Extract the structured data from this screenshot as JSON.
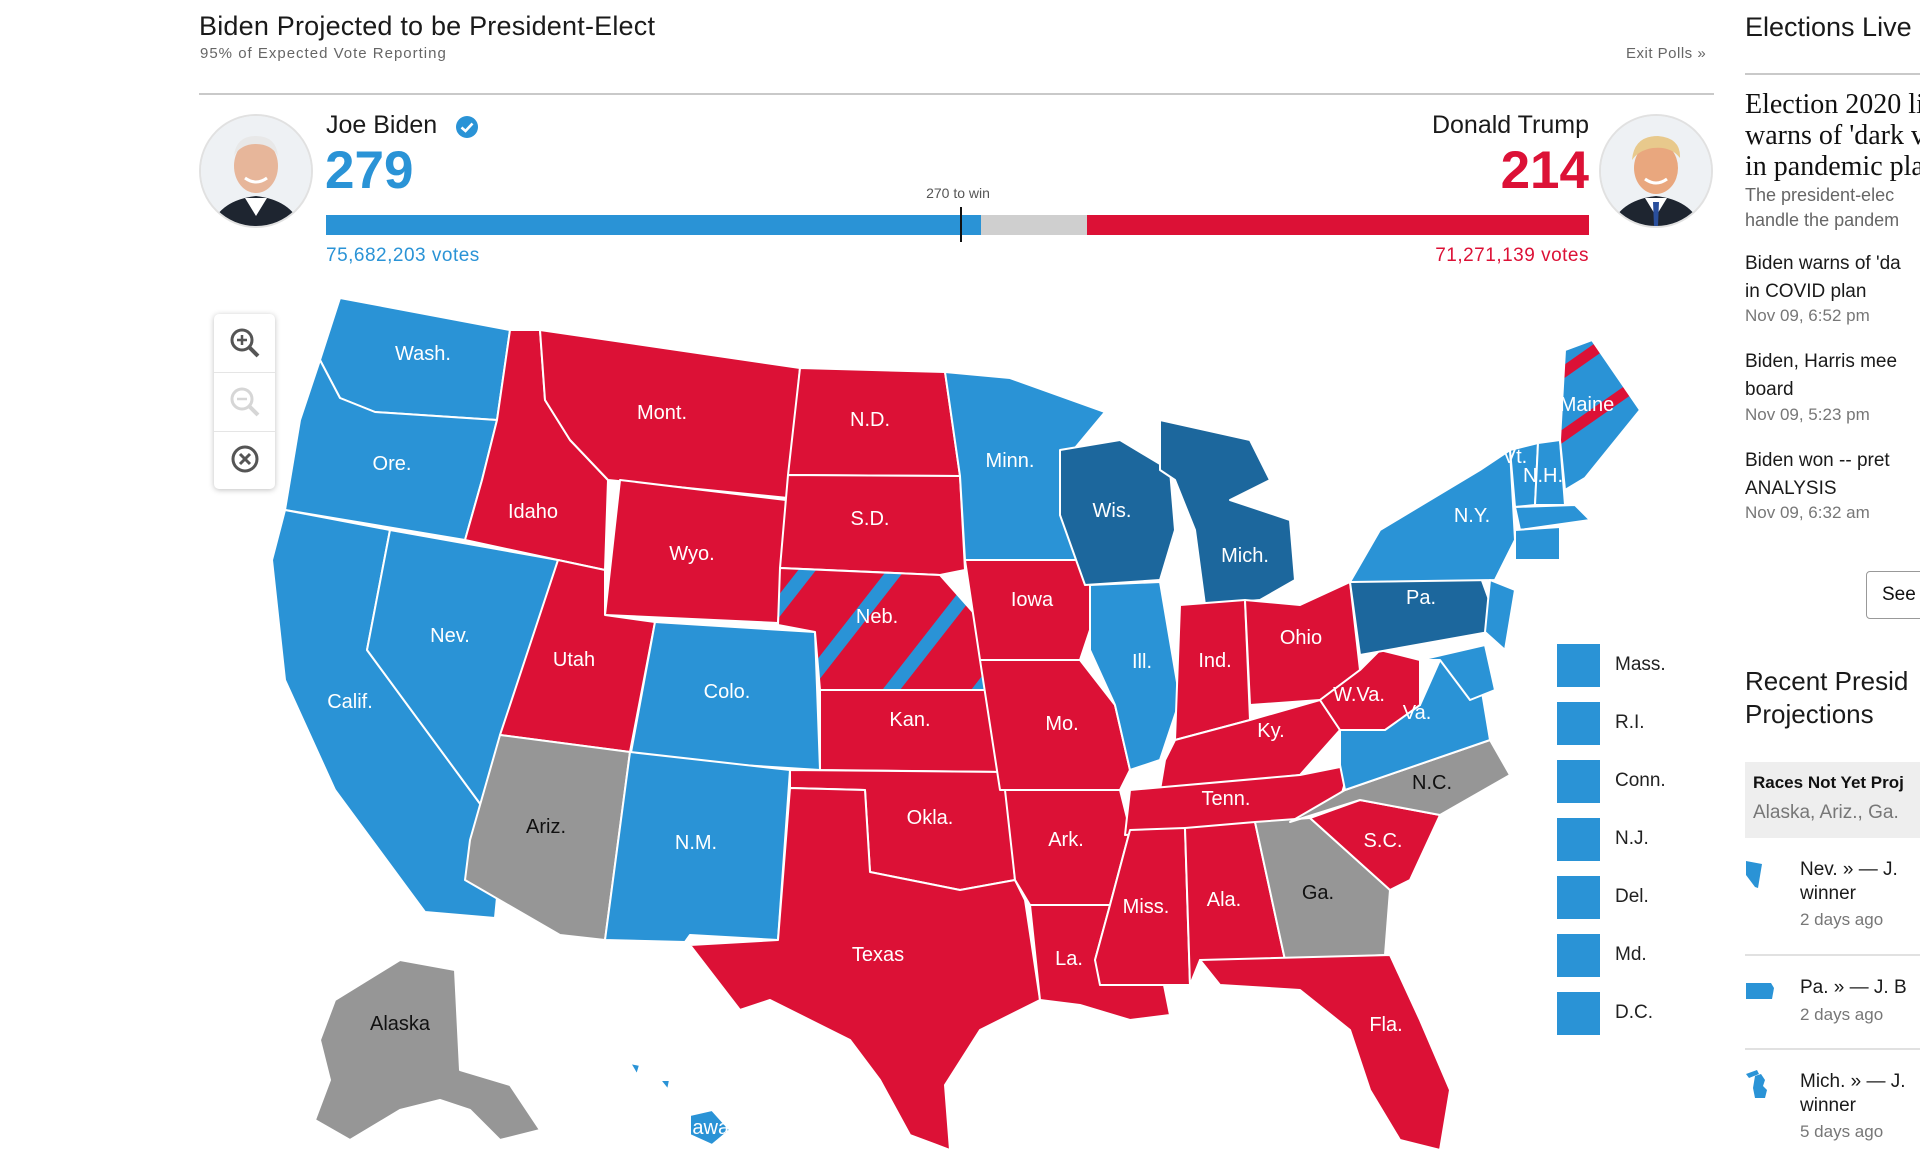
{
  "header": {
    "title": "Biden Projected to be President-Elect",
    "subtitle": "95% of Expected Vote Reporting",
    "exit_polls": "Exit Polls »"
  },
  "race": {
    "biden": {
      "name": "Joe Biden",
      "electoral_votes": "279",
      "popular_votes": "75,682,203 votes",
      "color": "#2a93d6"
    },
    "trump": {
      "name": "Donald Trump",
      "electoral_votes": "214",
      "popular_votes": "71,271,139 votes",
      "color": "#dc1136"
    },
    "threshold_label": "270 to win",
    "total_electoral_votes": 538,
    "threshold": 270
  },
  "map": {
    "colors": {
      "dem": "#2a93d6",
      "dem_flipped": "#1c679d",
      "rep": "#dc1136",
      "undecided": "#969696"
    },
    "states": [
      "Wash.",
      "Ore.",
      "Calif.",
      "Nev.",
      "Idaho",
      "Mont.",
      "Wyo.",
      "Utah",
      "Colo.",
      "Ariz.",
      "N.M.",
      "N.D.",
      "S.D.",
      "Neb.",
      "Kan.",
      "Okla.",
      "Texas",
      "Minn.",
      "Iowa",
      "Mo.",
      "Ark.",
      "La.",
      "Wis.",
      "Ill.",
      "Mich.",
      "Ind.",
      "Ohio",
      "Ky.",
      "Tenn.",
      "Miss.",
      "Ala.",
      "Ga.",
      "Fla.",
      "S.C.",
      "N.C.",
      "Va.",
      "W.Va.",
      "Pa.",
      "N.Y.",
      "Vt.",
      "N.H.",
      "Maine",
      "Alaska",
      "Hawaii"
    ],
    "small_states": [
      "Mass.",
      "R.I.",
      "Conn.",
      "N.J.",
      "Del.",
      "Md.",
      "D.C."
    ],
    "zoom_controls": [
      "zoom-in",
      "zoom-out",
      "reset"
    ]
  },
  "live": {
    "title": "Elections Live",
    "headline": [
      "Election 2020 li",
      "warns of 'dark v",
      "in pandemic pla"
    ],
    "headline_sub": [
      "The president-elec",
      "handle the pandem"
    ],
    "items": [
      {
        "text": [
          "Biden warns of 'da",
          "in COVID plan"
        ],
        "time": "Nov 09, 6:52 pm"
      },
      {
        "text": [
          "Biden, Harris mee",
          "board"
        ],
        "time": "Nov 09, 5:23 pm"
      },
      {
        "text": [
          "Biden won -- pret",
          "ANALYSIS"
        ],
        "time": "Nov 09, 6:32 am"
      }
    ],
    "see_button": "See"
  },
  "recent": {
    "title": [
      "Recent Presid",
      "Projections"
    ],
    "not_yet_title": "Races Not Yet Proj",
    "not_yet_list": "Alaska, Ariz., Ga.",
    "items": [
      {
        "state_icon": "nevada-icon",
        "main": [
          "Nev. » — J.",
          "winner"
        ],
        "time": "2 days ago"
      },
      {
        "state_icon": "pennsylvania-icon",
        "main": [
          "Pa. » — J. B"
        ],
        "time": "2 days ago"
      },
      {
        "state_icon": "michigan-icon",
        "main": [
          "Mich. » — J.",
          "winner"
        ],
        "time": "5 days ago"
      }
    ]
  }
}
